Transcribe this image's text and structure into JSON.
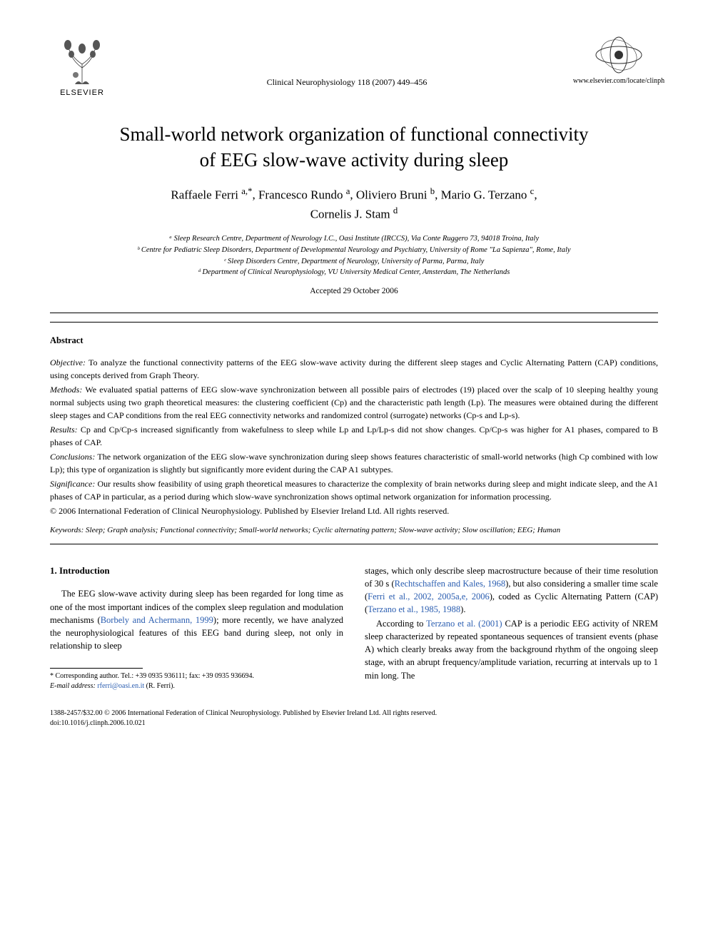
{
  "header": {
    "publisher": "ELSEVIER",
    "journal_ref": "Clinical Neurophysiology 118 (2007) 449–456",
    "journal_url": "www.elsevier.com/locate/clinph"
  },
  "title_lines": [
    "Small-world network organization of functional connectivity",
    "of EEG slow-wave activity during sleep"
  ],
  "authors_html": "Raffaele Ferri <sup>a,*</sup>, Francesco Rundo <sup>a</sup>, Oliviero Bruni <sup>b</sup>, Mario G. Terzano <sup>c</sup>,<br>Cornelis J. Stam <sup>d</sup>",
  "affiliations": [
    "ᵃ Sleep Research Centre, Department of Neurology I.C., Oasi Institute (IRCCS), Via Conte Ruggero 73, 94018 Troina, Italy",
    "ᵇ Centre for Pediatric Sleep Disorders, Department of Developmental Neurology and Psychiatry, University of Rome \"La Sapienza\", Rome, Italy",
    "ᶜ Sleep Disorders Centre, Department of Neurology, University of Parma, Parma, Italy",
    "ᵈ Department of Clinical Neurophysiology, VU University Medical Center, Amsterdam, The Netherlands"
  ],
  "accepted": "Accepted 29 October 2006",
  "abstract": {
    "label": "Abstract",
    "sections": [
      {
        "head": "Objective:",
        "text": "To analyze the functional connectivity patterns of the EEG slow-wave activity during the different sleep stages and Cyclic Alternating Pattern (CAP) conditions, using concepts derived from Graph Theory."
      },
      {
        "head": "Methods:",
        "text": "We evaluated spatial patterns of EEG slow-wave synchronization between all possible pairs of electrodes (19) placed over the scalp of 10 sleeping healthy young normal subjects using two graph theoretical measures: the clustering coefficient (Cp) and the characteristic path length (Lp). The measures were obtained during the different sleep stages and CAP conditions from the real EEG connectivity networks and randomized control (surrogate) networks (Cp-s and Lp-s)."
      },
      {
        "head": "Results:",
        "text": "Cp and Cp/Cp-s increased significantly from wakefulness to sleep while Lp and Lp/Lp-s did not show changes. Cp/Cp-s was higher for A1 phases, compared to B phases of CAP."
      },
      {
        "head": "Conclusions:",
        "text": "The network organization of the EEG slow-wave synchronization during sleep shows features characteristic of small-world networks (high Cp combined with low Lp); this type of organization is slightly but significantly more evident during the CAP A1 subtypes."
      },
      {
        "head": "Significance:",
        "text": "Our results show feasibility of using graph theoretical measures to characterize the complexity of brain networks during sleep and might indicate sleep, and the A1 phases of CAP in particular, as a period during which slow-wave synchronization shows optimal network organization for information processing."
      }
    ],
    "copyright": "© 2006 International Federation of Clinical Neurophysiology. Published by Elsevier Ireland Ltd. All rights reserved."
  },
  "keywords": {
    "label": "Keywords:",
    "text": "Sleep; Graph analysis; Functional connectivity; Small-world networks; Cyclic alternating pattern; Slow-wave activity; Slow oscillation; EEG; Human"
  },
  "body": {
    "section_heading": "1. Introduction",
    "left_col_html": "The EEG slow-wave activity during sleep has been regarded for long time as one of the most important indices of the complex sleep regulation and modulation mechanisms (<span class=\"ref-link\">Borbely and Achermann, 1999</span>); more recently, we have analyzed the neurophysiological features of this EEG band during sleep, not only in relationship to sleep",
    "right_col_p1_html": "stages, which only describe sleep macrostructure because of their time resolution of 30 s (<span class=\"ref-link\">Rechtschaffen and Kales, 1968</span>), but also considering a smaller time scale (<span class=\"ref-link\">Ferri et al., 2002, 2005a,e, 2006</span>), coded as Cyclic Alternating Pattern (CAP) (<span class=\"ref-link\">Terzano et al., 1985, 1988</span>).",
    "right_col_p2_html": "According to <span class=\"ref-link\">Terzano et al. (2001)</span> CAP is a periodic EEG activity of NREM sleep characterized by repeated spontaneous sequences of transient events (phase A) which clearly breaks away from the background rhythm of the ongoing sleep stage, with an abrupt frequency/amplitude variation, recurring at intervals up to 1 min long. The"
  },
  "footnote": {
    "corr": "* Corresponding author. Tel.: +39 0935 936111; fax: +39 0935 936694.",
    "email_label": "E-mail address:",
    "email": "rferri@oasi.en.it",
    "email_tail": "(R. Ferri)."
  },
  "footer": {
    "line1": "1388-2457/$32.00 © 2006 International Federation of Clinical Neurophysiology. Published by Elsevier Ireland Ltd. All rights reserved.",
    "line2": "doi:10.1016/j.clinph.2006.10.021"
  },
  "colors": {
    "text": "#000000",
    "background": "#ffffff",
    "link": "#2a5db0",
    "rule": "#000000"
  },
  "typography": {
    "title_pt": 27,
    "authors_pt": 17,
    "body_pt": 12.5,
    "abstract_pt": 12,
    "affil_pt": 10.5,
    "footnote_pt": 10
  }
}
